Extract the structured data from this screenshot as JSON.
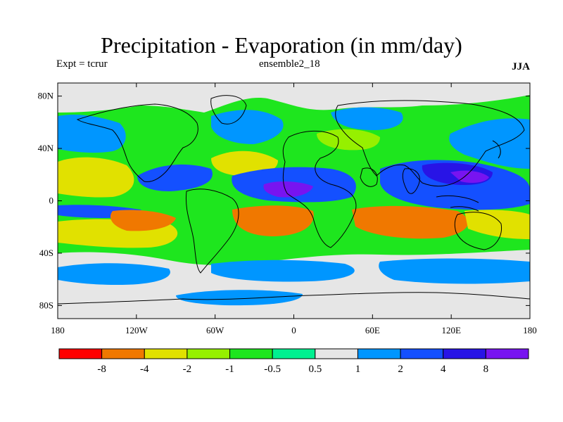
{
  "title": "Precipitation - Evaporation (in mm/day)",
  "subtitle_left": "Expt = tcrur",
  "subtitle_center": "ensemble2_18",
  "subtitle_right": "JJA",
  "lat_ticks": [
    {
      "value": 80,
      "label": "80N"
    },
    {
      "value": 40,
      "label": "40N"
    },
    {
      "value": 0,
      "label": "0"
    },
    {
      "value": -40,
      "label": "40S"
    },
    {
      "value": -80,
      "label": "80S"
    }
  ],
  "lon_ticks": [
    {
      "value": -180,
      "label": "180"
    },
    {
      "value": -120,
      "label": "120W"
    },
    {
      "value": -60,
      "label": "60W"
    },
    {
      "value": 0,
      "label": "0"
    },
    {
      "value": 60,
      "label": "60E"
    },
    {
      "value": 120,
      "label": "120E"
    },
    {
      "value": 180,
      "label": "180"
    }
  ],
  "lat_range": [
    -90,
    90
  ],
  "lon_range": [
    -180,
    180
  ],
  "colorbar": {
    "colors": [
      "#ff0000",
      "#f07800",
      "#e1e100",
      "#96f000",
      "#1ee61e",
      "#00f090",
      "#e6e6e6",
      "#0096ff",
      "#1450ff",
      "#2814e6",
      "#7814f0"
    ],
    "labels": [
      "-8",
      "-4",
      "-2",
      "-1",
      "-0.5",
      "0.5",
      "1",
      "2",
      "4",
      "8"
    ]
  },
  "palette": {
    "grey": "#e6e6e6",
    "teal": "#00f090",
    "green": "#1ee61e",
    "lime": "#96f000",
    "yellow": "#e1e100",
    "orange": "#f07800",
    "red": "#ff0000",
    "lightblue": "#0096ff",
    "blue": "#1450ff",
    "darkblue": "#2814e6",
    "violet": "#7814f0"
  }
}
